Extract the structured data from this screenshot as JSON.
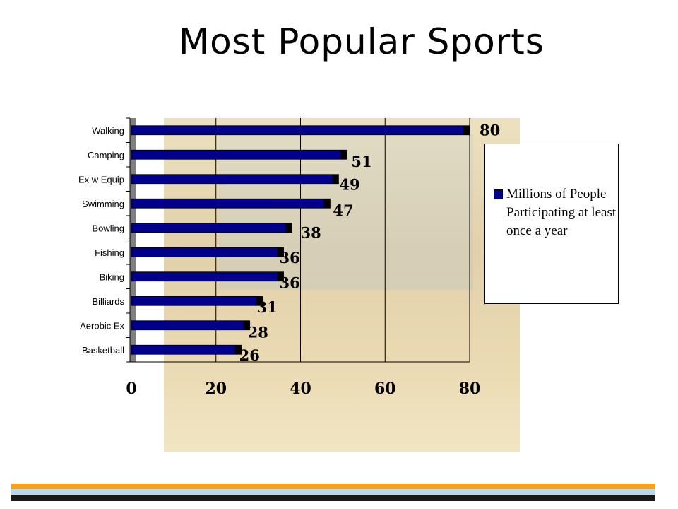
{
  "title": "Most Popular Sports",
  "colors": {
    "bar": "#00008b",
    "bar_end": "#000000",
    "axis": "#000000",
    "title": "#000000",
    "stripe_orange": "#f4a21c",
    "stripe_blue": "#b9d9ea",
    "stripe_black": "#1a1a1a"
  },
  "legend": {
    "label": "Millions of People Participating at least once a year",
    "position": "right"
  },
  "chart_data": {
    "type": "bar",
    "orientation": "horizontal",
    "categories": [
      "Walking",
      "Camping",
      "Ex w Equip",
      "Swimming",
      "Bowling",
      "Fishing",
      "Biking",
      "Billiards",
      "Aerobic Ex",
      "Basketball"
    ],
    "series": [
      {
        "name": "Millions of People Participating at least once a year",
        "values": [
          80,
          51,
          49,
          47,
          38,
          36,
          36,
          31,
          28,
          26
        ]
      }
    ],
    "data_labels": [
      "80",
      "51",
      "49",
      "47",
      "38",
      "36",
      "36",
      "31",
      "28",
      "26"
    ],
    "xlim": [
      0,
      80
    ],
    "xticks": [
      0,
      20,
      40,
      60,
      80
    ],
    "xtick_labels": [
      "0",
      "20",
      "40",
      "60",
      "80"
    ],
    "grid": "vertical",
    "legend_position": "right"
  }
}
